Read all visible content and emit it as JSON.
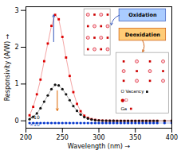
{
  "chart_data": {
    "type": "line",
    "xlabel": "Wavelength (nm)",
    "ylabel": "Responsivity (A/W)",
    "x": [
      205,
      210,
      215,
      220,
      225,
      230,
      235,
      240,
      245,
      250,
      255,
      260,
      265,
      270,
      275,
      280,
      285,
      290,
      295,
      300,
      305,
      310,
      315,
      320,
      325,
      330,
      335,
      340,
      345,
      350,
      355,
      360,
      365,
      370,
      375,
      380,
      390,
      400
    ],
    "xlim": [
      200,
      400
    ],
    "ylim": [
      -0.2,
      3.1
    ],
    "xticks": [
      200,
      250,
      300,
      350,
      400
    ],
    "yticks": [
      0,
      1,
      2,
      3
    ],
    "series": [
      {
        "color": "#dd0000",
        "marker": "square",
        "values": [
          0.15,
          0.38,
          0.72,
          1.12,
          1.62,
          2.1,
          2.58,
          2.88,
          2.76,
          2.28,
          1.72,
          1.22,
          0.78,
          0.46,
          0.26,
          0.14,
          0.08,
          0.045,
          0.025,
          0.012,
          0.006,
          0.003,
          0.002,
          0.001,
          0.001,
          0.0,
          0.0,
          0.0,
          0.0,
          0.0,
          0.0,
          0.0,
          0.0,
          0.0,
          0.0,
          0.0,
          0.0,
          0.0
        ]
      },
      {
        "color": "#111111",
        "marker": "circle",
        "values": [
          0.045,
          0.11,
          0.2,
          0.34,
          0.52,
          0.69,
          0.86,
          0.98,
          0.96,
          0.86,
          0.72,
          0.56,
          0.4,
          0.27,
          0.17,
          0.1,
          0.06,
          0.035,
          0.018,
          0.01,
          0.005,
          0.003,
          0.002,
          0.001,
          0.0,
          0.0,
          0.0,
          0.0,
          0.0,
          0.0,
          0.0,
          0.0,
          0.0,
          0.0,
          0.0,
          0.0,
          0.0,
          0.0
        ]
      },
      {
        "color": "#0033cc",
        "marker": "circle",
        "values": [
          -0.06,
          -0.06,
          -0.06,
          -0.06,
          -0.06,
          -0.06,
          -0.06,
          -0.06,
          -0.06,
          -0.06,
          -0.06,
          -0.06,
          -0.06,
          -0.06,
          -0.06,
          -0.06,
          -0.06,
          -0.06,
          -0.06,
          -0.06,
          -0.06,
          -0.06,
          -0.06,
          -0.06,
          -0.06,
          -0.06,
          -0.06,
          -0.06,
          -0.06,
          -0.06,
          -0.06,
          -0.06,
          -0.06,
          -0.06,
          -0.06,
          -0.06,
          -0.06,
          -0.06
        ]
      }
    ],
    "annotations": [
      {
        "text": "×10",
        "color": "#111111"
      },
      {
        "text": "×10",
        "color": "#3355bb"
      },
      {
        "text": "Oxidation"
      },
      {
        "text": "Deoxidation"
      },
      {
        "text": "O Vacancy"
      },
      {
        "text": "●O",
        "color": "#cc0000"
      },
      {
        "text": "Ga"
      }
    ]
  }
}
